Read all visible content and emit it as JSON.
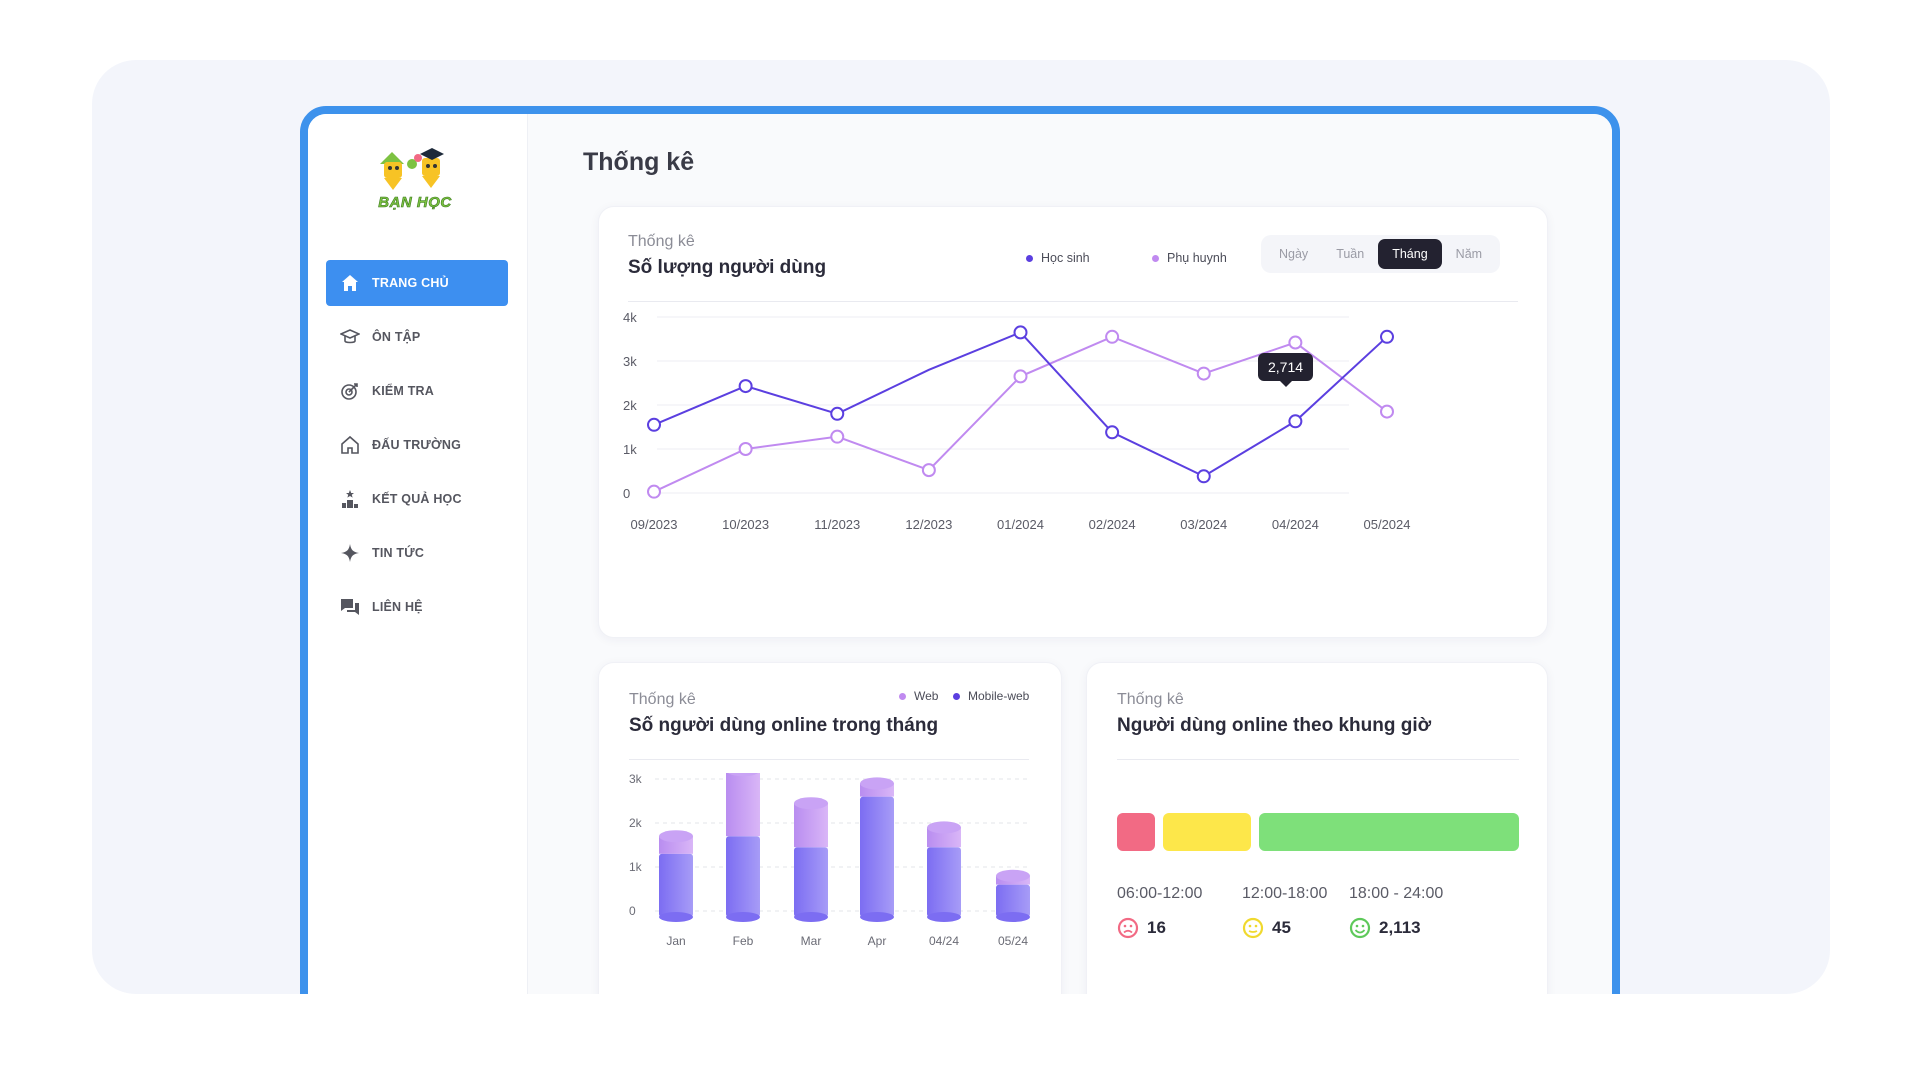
{
  "app": {
    "logo_text": "BẠN HỌC",
    "page_title": "Thống kê"
  },
  "sidebar": {
    "items": [
      {
        "label": "TRANG CHỦ",
        "icon": "home-icon",
        "active": true
      },
      {
        "label": "ÔN TẬP",
        "icon": "graduation-cap-icon",
        "active": false
      },
      {
        "label": "KIỂM TRA",
        "icon": "target-icon",
        "active": false
      },
      {
        "label": "ĐẤU TRƯỜNG",
        "icon": "arena-house-icon",
        "active": false
      },
      {
        "label": "KẾT QUẢ HỌC",
        "icon": "podium-star-icon",
        "active": false
      },
      {
        "label": "TIN TỨC",
        "icon": "sparkle-icon",
        "active": false
      },
      {
        "label": "LIÊN HỆ",
        "icon": "chat-icon",
        "active": false
      }
    ]
  },
  "user_chart": {
    "subtitle": "Thống kê",
    "title": "Số lượng người dùng",
    "legend": [
      {
        "name": "Học sinh",
        "color": "#5b3fe0"
      },
      {
        "name": "Phụ huynh",
        "color": "#c08af0"
      }
    ],
    "periods": [
      "Ngày",
      "Tuần",
      "Tháng",
      "Năm"
    ],
    "active_period": "Tháng",
    "tooltip": "2,714"
  },
  "online_month": {
    "subtitle": "Thống kê",
    "title": "Số người dùng online trong tháng",
    "legend": [
      {
        "name": "Web",
        "color": "#c08af0"
      },
      {
        "name": "Mobile-web",
        "color": "#5b3fe0"
      }
    ]
  },
  "online_hours": {
    "subtitle": "Thống kê",
    "title": "Người dùng online theo khung giờ",
    "slots": [
      {
        "label": "06:00-12:00",
        "value": "16",
        "color": "#f26a84",
        "face": "sad"
      },
      {
        "label": "12:00-18:00",
        "value": "45",
        "color": "#fde74a",
        "face": "neutral"
      },
      {
        "label": "18:00 - 24:00",
        "value": "2,113",
        "color": "#7ee07a",
        "face": "happy"
      }
    ]
  },
  "chart_data": [
    {
      "type": "line",
      "title": "Số lượng người dùng",
      "x": [
        "09/2023",
        "10/2023",
        "11/2023",
        "12/2023",
        "01/2024",
        "02/2024",
        "03/2024",
        "04/2024",
        "05/2024"
      ],
      "yticks": [
        "0",
        "1k",
        "2k",
        "3k",
        "4k"
      ],
      "ylim": [
        0,
        4000
      ],
      "series": [
        {
          "name": "Học sinh",
          "color": "#5b3fe0",
          "values": [
            1550,
            2430,
            1800,
            null,
            3650,
            1380,
            380,
            1630,
            3550
          ],
          "mid_values": [
            null,
            null,
            null,
            2800,
            null,
            null,
            null,
            null,
            null
          ]
        },
        {
          "name": "Phụ huynh",
          "color": "#c08af0",
          "values": [
            30,
            1000,
            1280,
            520,
            2650,
            3550,
            2714,
            3420,
            1850
          ]
        }
      ]
    },
    {
      "type": "bar",
      "title": "Số người dùng online trong tháng",
      "categories": [
        "Jan",
        "Feb",
        "Mar",
        "Apr",
        "04/24",
        "05/24"
      ],
      "yticks": [
        "0",
        "1k",
        "2k",
        "3k"
      ],
      "ylim": [
        0,
        3000
      ],
      "series": [
        {
          "name": "Mobile-web",
          "values": [
            1300,
            1700,
            1450,
            2600,
            1450,
            600
          ]
        },
        {
          "name": "Web",
          "values": [
            400,
            1500,
            1000,
            300,
            450,
            200
          ]
        }
      ]
    }
  ]
}
